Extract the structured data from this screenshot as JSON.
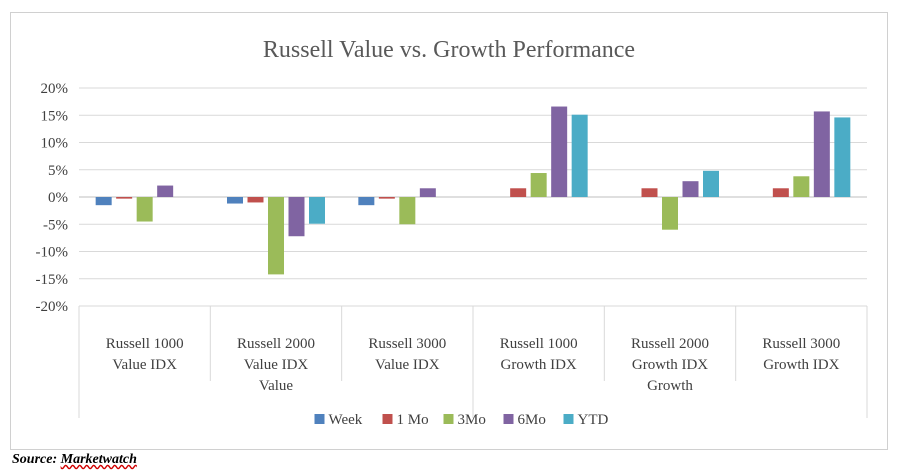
{
  "chart_data": {
    "type": "bar",
    "title": "Russell Value vs. Growth Performance",
    "categories": [
      {
        "lines": [
          "Russell 1000",
          "Value IDX"
        ],
        "group": "Value"
      },
      {
        "lines": [
          "Russell 2000",
          "Value IDX"
        ],
        "group": "Value"
      },
      {
        "lines": [
          "Russell 3000",
          "Value IDX"
        ],
        "group": "Value"
      },
      {
        "lines": [
          "Russell 1000",
          "Growth IDX"
        ],
        "group": "Growth"
      },
      {
        "lines": [
          "Russell 2000",
          "Growth IDX"
        ],
        "group": "Growth"
      },
      {
        "lines": [
          "Russell 3000",
          "Growth IDX"
        ],
        "group": "Growth"
      }
    ],
    "groups": [
      "Value",
      "Growth"
    ],
    "series": [
      {
        "name": "Week",
        "color": "#4f81bd",
        "values": [
          -1.5,
          -1.2,
          -1.5,
          0,
          0,
          0
        ]
      },
      {
        "name": "1 Mo",
        "color": "#c0504d",
        "values": [
          -0.3,
          -1.0,
          -0.3,
          1.6,
          1.6,
          1.6
        ]
      },
      {
        "name": "3Mo",
        "color": "#9bbb59",
        "values": [
          -4.5,
          -14.2,
          -5.0,
          4.4,
          -6.0,
          3.8
        ]
      },
      {
        "name": "6Mo",
        "color": "#8064a2",
        "values": [
          2.1,
          -7.2,
          1.6,
          16.6,
          2.9,
          15.7
        ]
      },
      {
        "name": "YTD",
        "color": "#4bacc6",
        "values": [
          0,
          -4.9,
          0,
          15.1,
          4.8,
          14.6
        ]
      }
    ],
    "yticks": [
      "20%",
      "15%",
      "10%",
      "5%",
      "0%",
      "-5%",
      "-10%",
      "-15%",
      "-20%"
    ],
    "ylim": [
      -20,
      20
    ],
    "ytick_step": 5,
    "grid": true,
    "legend": "bottom",
    "xlabel": "",
    "ylabel": ""
  },
  "source": {
    "label": "Source:",
    "name": "Marketwatch"
  }
}
